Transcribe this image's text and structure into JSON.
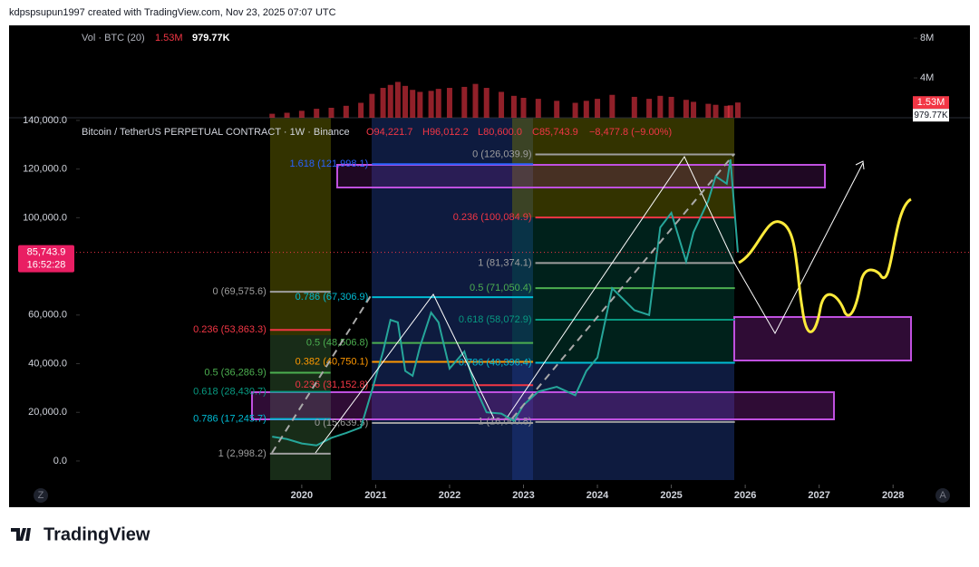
{
  "header": {
    "credit": "kdpspsupun1997 created with TradingView.com, Nov 23, 2025 07:07 UTC"
  },
  "footer": {
    "brand": "TradingView"
  },
  "chart_data": {
    "type": "line",
    "title": "Bitcoin / TetherUS PERPETUAL CONTRACT · 1W · Binance",
    "ohlc": [
      "O94,221.7",
      "H96,012.2",
      "L80,600.0",
      "C85,743.9",
      "−8,477.8 (−9.00%)"
    ],
    "color": "#26a69a",
    "x": [
      2019.6,
      2019.8,
      2020.0,
      2020.2,
      2020.4,
      2020.6,
      2020.8,
      2020.95,
      2021.1,
      2021.2,
      2021.3,
      2021.4,
      2021.5,
      2021.6,
      2021.75,
      2021.85,
      2022.0,
      2022.2,
      2022.35,
      2022.5,
      2022.7,
      2022.87,
      2023.0,
      2023.2,
      2023.45,
      2023.7,
      2023.85,
      2024.0,
      2024.2,
      2024.5,
      2024.7,
      2024.85,
      2025.0,
      2025.2,
      2025.3,
      2025.5,
      2025.6,
      2025.75,
      2025.8,
      2025.9
    ],
    "values": [
      10000,
      9000,
      7200,
      6400,
      9500,
      11500,
      13800,
      29000,
      45000,
      58000,
      57000,
      37000,
      35000,
      47000,
      61000,
      57000,
      38000,
      45000,
      30000,
      20000,
      19500,
      16500,
      23000,
      28500,
      30500,
      27000,
      37000,
      42500,
      71000,
      62000,
      60000,
      96000,
      102000,
      82000,
      94000,
      107000,
      117000,
      114000,
      124000,
      85743.9
    ],
    "volume": [
      400000,
      500000,
      700000,
      900000,
      1000000,
      1200000,
      1500000,
      2400000,
      3000000,
      3300000,
      3600000,
      3200000,
      2800000,
      2600000,
      2700000,
      2900000,
      3000000,
      3100000,
      3400000,
      3000000,
      2600000,
      2200000,
      2000000,
      1900000,
      1700000,
      1500000,
      1700000,
      1900000,
      2300000,
      2100000,
      1900000,
      2200000,
      2100000,
      1800000,
      1600000,
      1400000,
      1300000,
      1200000,
      1250000,
      1530000
    ],
    "volume_color": "#f23645",
    "volume_legend": "Vol · BTC (20)",
    "volume_last": {
      "value": 1530000,
      "label": "1.53M"
    },
    "volume_ma": {
      "value": 979770,
      "label": "979.77K"
    },
    "vlim": [
      0,
      9100000
    ],
    "vticks": [
      {
        "value": 8000000,
        "label": "8M"
      },
      {
        "value": 4000000,
        "label": "4M"
      }
    ],
    "xlim": [
      2016.04,
      2029.04
    ],
    "xticks": [
      2020,
      2021,
      2022,
      2023,
      2024,
      2025,
      2026,
      2027,
      2028
    ],
    "ylim": [
      -9700,
      141100
    ],
    "yticks": [
      {
        "value": 140000,
        "label": "140,000.0"
      },
      {
        "value": 120000,
        "label": "120,000.0"
      },
      {
        "value": 100000,
        "label": "100,000.0"
      },
      {
        "value": 60000,
        "label": "60,000.0"
      },
      {
        "value": 40000,
        "label": "40,000.0"
      },
      {
        "value": 20000,
        "label": "20,000.0"
      },
      {
        "value": 0,
        "label": "0.0"
      }
    ],
    "last_price": {
      "value": 85743.9,
      "label": "85,743.9"
    },
    "countdown": "16:52:28",
    "fib_levels": [
      {
        "label": "0 (69,575.6)",
        "value": 69575.6,
        "color": "#9e9e9e",
        "x": [
          2019.57,
          2020.39
        ]
      },
      {
        "label": "0.236 (53,863.3)",
        "value": 53863.3,
        "color": "#f23645",
        "x": [
          2019.57,
          2020.39
        ]
      },
      {
        "label": "0.5 (36,286.9)",
        "value": 36286.9,
        "color": "#4caf50",
        "x": [
          2019.57,
          2020.39
        ]
      },
      {
        "label": "0.618 (28,430.7)",
        "value": 28430.7,
        "color": "#089981",
        "x": [
          2019.57,
          2020.39
        ]
      },
      {
        "label": "0.786 (17,245.7)",
        "value": 17245.7,
        "color": "#00bcd4",
        "x": [
          2019.57,
          2020.39
        ]
      },
      {
        "label": "1 (2,998.2)",
        "value": 2998.2,
        "color": "#9e9e9e",
        "x": [
          2019.57,
          2020.39
        ]
      },
      {
        "label": "1.618 (121,998.1)",
        "value": 121998.1,
        "color": "#2962ff",
        "x": [
          2020.95,
          2023.13
        ]
      },
      {
        "label": "0.786 (67,306.9)",
        "value": 67306.9,
        "color": "#00bcd4",
        "x": [
          2020.95,
          2023.13
        ]
      },
      {
        "label": "0.5 (48,506.8)",
        "value": 48506.8,
        "color": "#4caf50",
        "x": [
          2020.95,
          2023.13
        ]
      },
      {
        "label": "0.382 (40,750.1)",
        "value": 40750.1,
        "color": "#ff9800",
        "x": [
          2020.95,
          2023.13
        ]
      },
      {
        "label": "0.236 (31,152.8)",
        "value": 31152.8,
        "color": "#f23645",
        "x": [
          2020.95,
          2023.13
        ]
      },
      {
        "label": "0 (15,639.5)",
        "value": 15639.5,
        "color": "#9e9e9e",
        "x": [
          2020.95,
          2023.13
        ]
      },
      {
        "label": "0 (126,039.9)",
        "value": 126039.9,
        "color": "#9e9e9e",
        "x": [
          2023.16,
          2025.86
        ]
      },
      {
        "label": "0.236 (100,084.9)",
        "value": 100084.9,
        "color": "#f23645",
        "x": [
          2023.16,
          2025.86
        ]
      },
      {
        "label": "1 (81,374.1)",
        "value": 81374.1,
        "color": "#9e9e9e",
        "x": [
          2023.16,
          2025.86
        ]
      },
      {
        "label": "0.5 (71,050.4)",
        "value": 71050.4,
        "color": "#4caf50",
        "x": [
          2023.16,
          2025.86
        ]
      },
      {
        "label": "0.618 (58,072.9)",
        "value": 58072.9,
        "color": "#089981",
        "x": [
          2023.16,
          2025.86
        ]
      },
      {
        "label": "0.786 (40,396.4)",
        "value": 40396.4,
        "color": "#00bcd4",
        "x": [
          2023.16,
          2025.86
        ]
      },
      {
        "label": "1 (16,060.8)",
        "value": 16060.8,
        "color": "#9e9e9e",
        "x": [
          2023.16,
          2025.86
        ]
      }
    ]
  }
}
